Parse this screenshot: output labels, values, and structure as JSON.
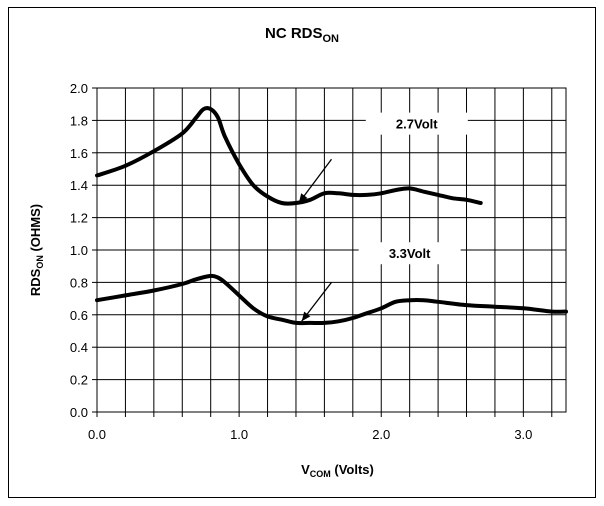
{
  "chart_data": {
    "type": "line",
    "title": {
      "main": "NC RDS",
      "sub": "ON"
    },
    "xlabel": {
      "main": "V",
      "sub": "COM",
      "rest": " (Volts)"
    },
    "ylabel": {
      "main": "RDS",
      "sub": "ON",
      "rest": " (OHMS)"
    },
    "xlim": [
      0,
      3.3
    ],
    "ylim": [
      0,
      2.0
    ],
    "x_ticks": [
      0.0,
      0.2,
      0.4,
      0.6,
      0.8,
      1.0,
      1.2,
      1.4,
      1.6,
      1.8,
      2.0,
      2.2,
      2.4,
      2.6,
      2.8,
      3.0,
      3.2
    ],
    "x_tick_labels": [
      {
        "value": 0.0,
        "label": "0.0"
      },
      {
        "value": 1.0,
        "label": "1.0"
      },
      {
        "value": 2.0,
        "label": "2.0"
      },
      {
        "value": 3.0,
        "label": "3.0"
      }
    ],
    "y_ticks": [
      {
        "value": 0.0,
        "label": "0.0"
      },
      {
        "value": 0.2,
        "label": "0.2"
      },
      {
        "value": 0.4,
        "label": "0.4"
      },
      {
        "value": 0.6,
        "label": "0.6"
      },
      {
        "value": 0.8,
        "label": "0.8"
      },
      {
        "value": 1.0,
        "label": "1.0"
      },
      {
        "value": 1.2,
        "label": "1.2"
      },
      {
        "value": 1.4,
        "label": "1.4"
      },
      {
        "value": 1.6,
        "label": "1.6"
      },
      {
        "value": 1.8,
        "label": "1.8"
      },
      {
        "value": 2.0,
        "label": "2.0"
      }
    ],
    "grid": true,
    "series": [
      {
        "name": "2.7Volt",
        "x": [
          0.0,
          0.2,
          0.4,
          0.6,
          0.7,
          0.75,
          0.8,
          0.85,
          0.9,
          1.0,
          1.1,
          1.2,
          1.3,
          1.4,
          1.5,
          1.6,
          1.7,
          1.8,
          1.9,
          2.0,
          2.1,
          2.2,
          2.3,
          2.4,
          2.5,
          2.6,
          2.7
        ],
        "y": [
          1.46,
          1.52,
          1.61,
          1.72,
          1.82,
          1.87,
          1.87,
          1.82,
          1.7,
          1.53,
          1.4,
          1.33,
          1.29,
          1.29,
          1.31,
          1.35,
          1.35,
          1.34,
          1.34,
          1.35,
          1.37,
          1.38,
          1.36,
          1.34,
          1.32,
          1.31,
          1.29
        ]
      },
      {
        "name": "3.3Volt",
        "x": [
          0.0,
          0.2,
          0.4,
          0.6,
          0.7,
          0.8,
          0.85,
          0.9,
          1.0,
          1.1,
          1.2,
          1.3,
          1.4,
          1.5,
          1.6,
          1.7,
          1.8,
          1.9,
          2.0,
          2.1,
          2.2,
          2.3,
          2.4,
          2.6,
          2.8,
          3.0,
          3.2,
          3.3
        ],
        "y": [
          0.69,
          0.72,
          0.75,
          0.79,
          0.82,
          0.84,
          0.83,
          0.8,
          0.72,
          0.64,
          0.59,
          0.57,
          0.55,
          0.55,
          0.55,
          0.56,
          0.58,
          0.61,
          0.64,
          0.68,
          0.69,
          0.69,
          0.68,
          0.66,
          0.65,
          0.64,
          0.62,
          0.62
        ]
      }
    ],
    "annotations": [
      {
        "text": "2.7Volt",
        "x": 2.25,
        "y": 1.78,
        "arrow_from": [
          1.65,
          1.56
        ],
        "arrow_to": [
          1.42,
          1.29
        ]
      },
      {
        "text": "3.3Volt",
        "x": 2.2,
        "y": 0.98,
        "arrow_from": [
          1.65,
          0.8
        ],
        "arrow_to": [
          1.44,
          0.56
        ]
      }
    ]
  }
}
